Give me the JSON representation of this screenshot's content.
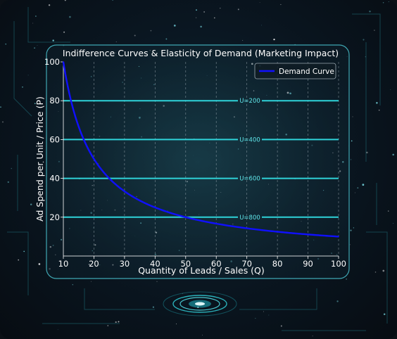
{
  "colors": {
    "demand": "#1010ff",
    "indifference": "#2fd3d9",
    "panel_border": "#3fa7b3",
    "background": "#0a1722"
  },
  "chart_data": {
    "type": "line",
    "title": "Indifference Curves & Elasticity of Demand (Marketing Impact)",
    "xlabel": "Quantity of Leads / Sales (Q)",
    "ylabel": "Ad Spend per Unit / Price (P)",
    "xlim": [
      10,
      100
    ],
    "ylim": [
      0,
      100
    ],
    "x_ticks": [
      10,
      20,
      30,
      40,
      50,
      60,
      70,
      80,
      90,
      100
    ],
    "y_ticks": [
      20,
      40,
      60,
      80,
      100
    ],
    "grid": {
      "x": true,
      "y": false,
      "style": "dashed"
    },
    "legend": {
      "placement": "top-right",
      "entries": [
        "Demand Curve"
      ]
    },
    "series": [
      {
        "name": "Demand Curve",
        "formula": "P = 1000 / Q",
        "x": [
          10,
          12,
          14,
          16,
          18,
          20,
          25,
          30,
          35,
          40,
          45,
          50,
          60,
          70,
          80,
          90,
          100
        ],
        "y": [
          100,
          83.3,
          71.4,
          62.5,
          55.6,
          50,
          40,
          33.3,
          28.6,
          25,
          22.2,
          20,
          16.7,
          14.3,
          12.5,
          11.1,
          10
        ]
      }
    ],
    "indifference_lines": [
      {
        "label": "U=200",
        "y": 80
      },
      {
        "label": "U=400",
        "y": 60
      },
      {
        "label": "U=600",
        "y": 40
      },
      {
        "label": "U=800",
        "y": 20
      }
    ]
  }
}
